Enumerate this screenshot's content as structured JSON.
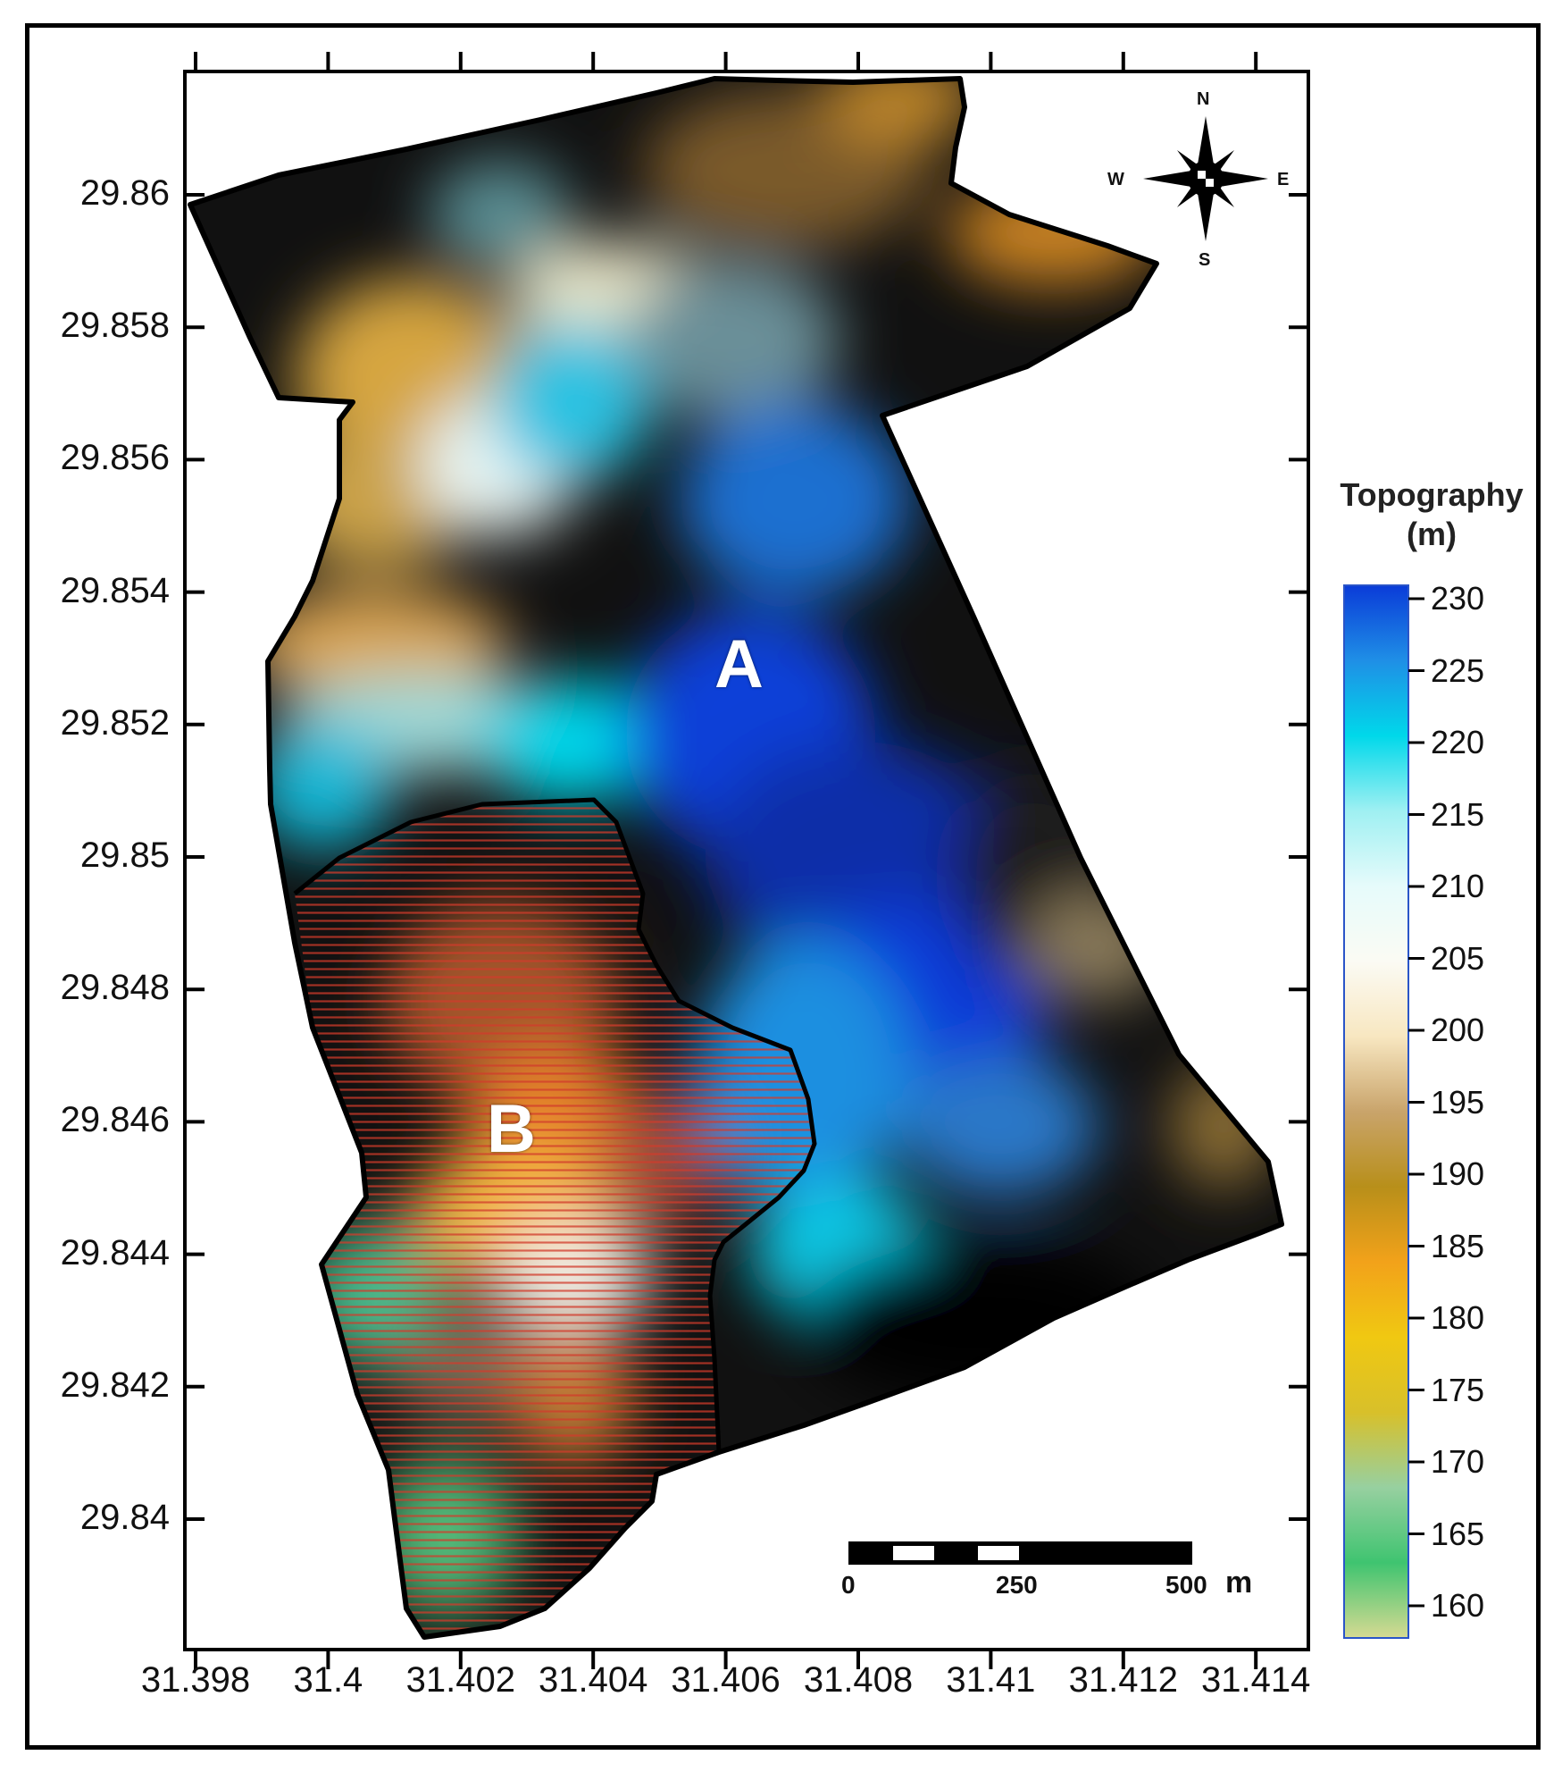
{
  "map": {
    "x_ticks": [
      "31.398",
      "31.4",
      "31.402",
      "31.404",
      "31.406",
      "31.408",
      "31.41",
      "31.412",
      "31.414"
    ],
    "y_ticks": [
      "29.86",
      "29.858",
      "29.856",
      "29.854",
      "29.852",
      "29.85",
      "29.848",
      "29.846",
      "29.844",
      "29.842",
      "29.84"
    ],
    "regions": [
      {
        "label": "A"
      },
      {
        "label": "B"
      }
    ]
  },
  "legend": {
    "title_line1": "Topography",
    "title_line2": "(m)",
    "ticks": [
      "230",
      "225",
      "220",
      "215",
      "210",
      "205",
      "200",
      "195",
      "190",
      "185",
      "180",
      "175",
      "170",
      "165",
      "160"
    ],
    "colors": [
      "#0a3bd8",
      "#1f8fe6",
      "#00d8ea",
      "#9ff0f2",
      "#e6fbfb",
      "#fbfbf4",
      "#f8e7c1",
      "#c9a46b",
      "#b88f1a",
      "#f2a21a",
      "#f0c812",
      "#d8c02a",
      "#97d0a0",
      "#3fc470",
      "#d6da92"
    ]
  },
  "compass": {
    "n": "N",
    "s": "S",
    "e": "E",
    "w": "W"
  },
  "scale_bar": {
    "labels": [
      "0",
      "250",
      "500"
    ],
    "unit": "m"
  }
}
